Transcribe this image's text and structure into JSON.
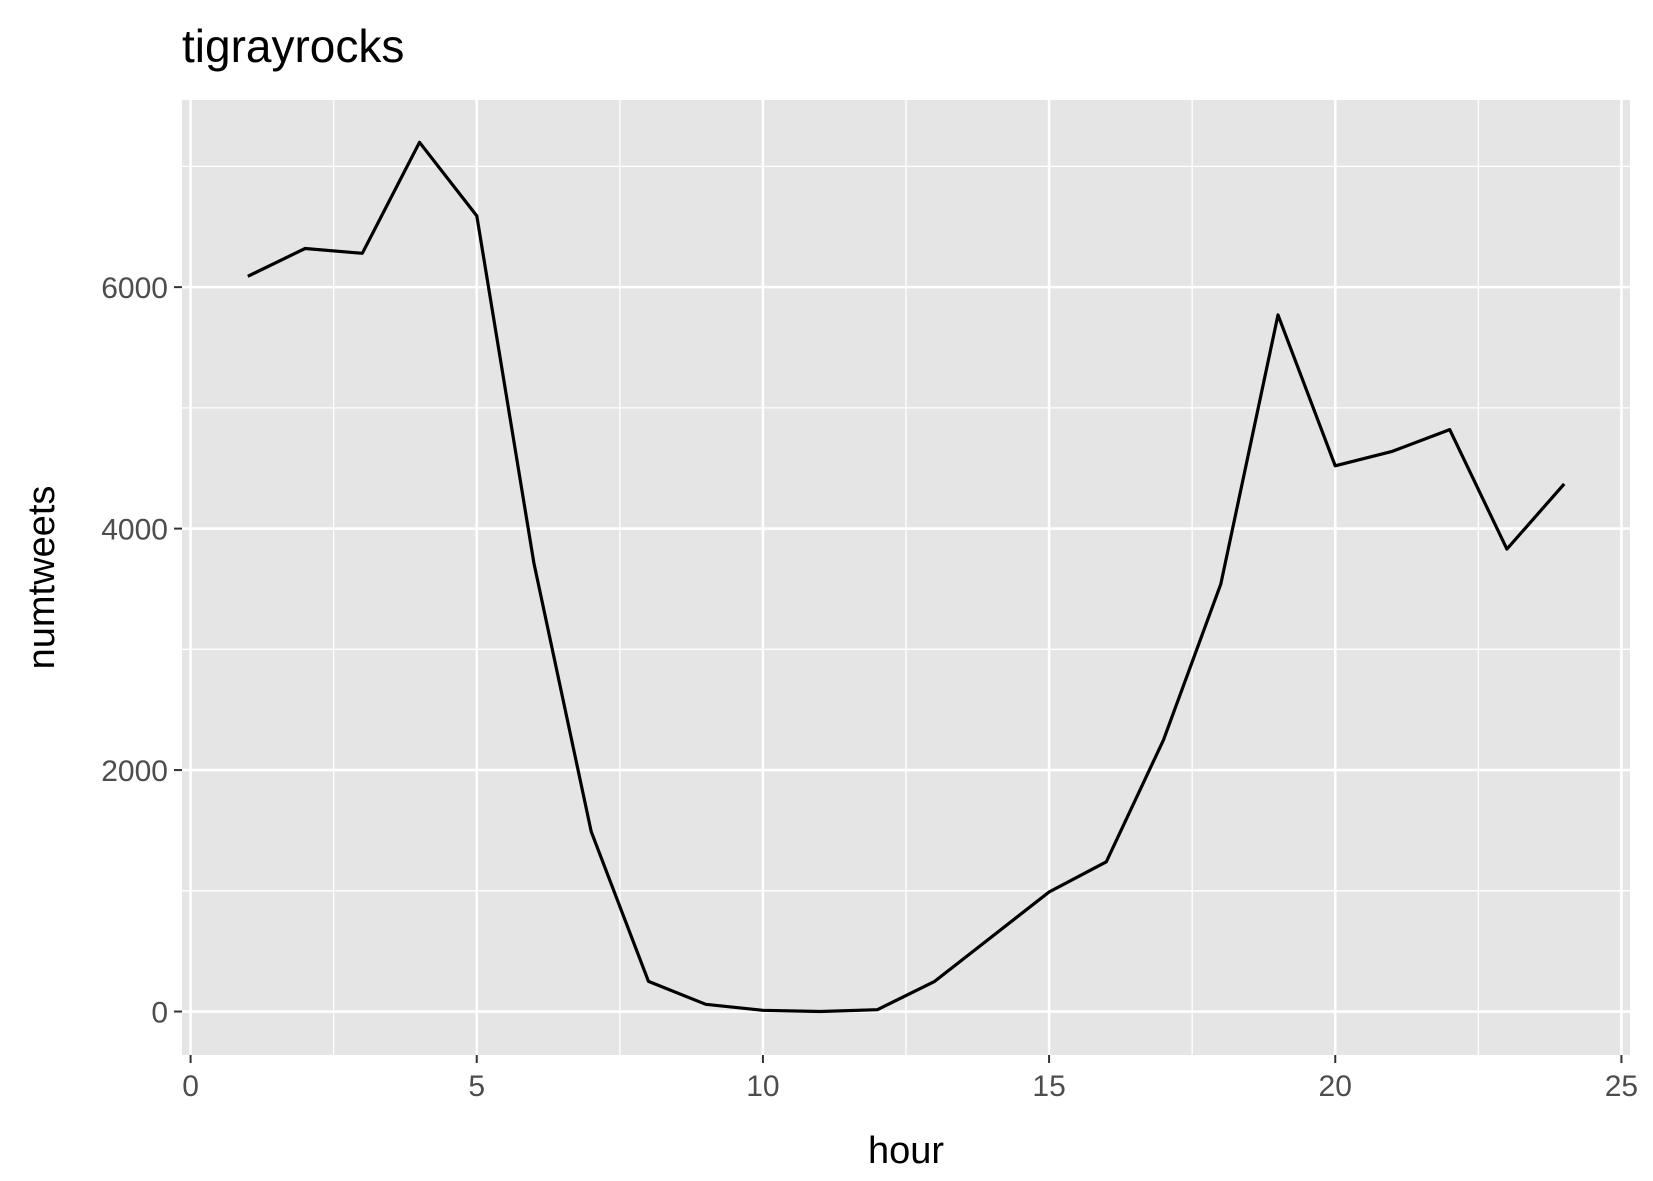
{
  "chart_data": {
    "type": "line",
    "title": "tigrayrocks",
    "xlabel": "hour",
    "ylabel": "numtweets",
    "xlim": [
      -0.15,
      25.15
    ],
    "ylim": [
      -360,
      7550
    ],
    "x_ticks": [
      0,
      5,
      10,
      15,
      20,
      25
    ],
    "y_ticks": [
      0,
      2000,
      4000,
      6000
    ],
    "grid": true,
    "background": "#e5e5e5",
    "line_color": "#000000",
    "series": [
      {
        "x": [
          1,
          2,
          3,
          4,
          5,
          6,
          7,
          8,
          9,
          10,
          11,
          12,
          13,
          14,
          15,
          16,
          17,
          18,
          19,
          20,
          21,
          22,
          23,
          24
        ],
        "values": [
          6090,
          6320,
          6280,
          7200,
          6590,
          3710,
          1490,
          250,
          60,
          10,
          0,
          15,
          250,
          620,
          990,
          1240,
          2250,
          3540,
          5770,
          4520,
          4640,
          4820,
          3830,
          4370
        ]
      }
    ]
  }
}
